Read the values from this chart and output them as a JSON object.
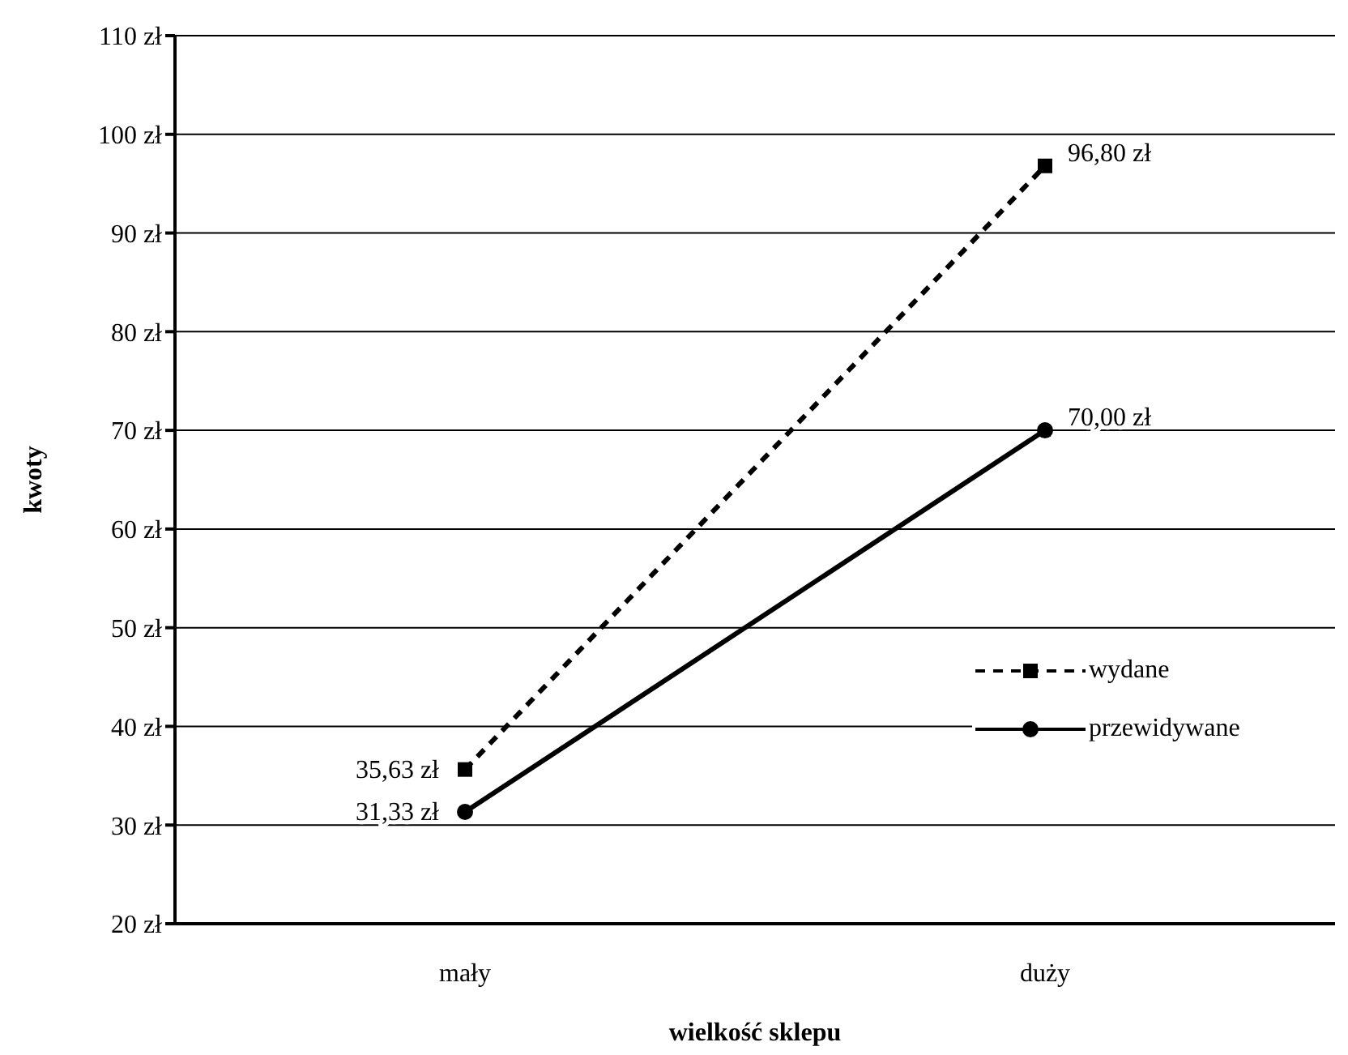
{
  "chart_data": {
    "type": "line",
    "xlabel": "wielkość sklepu",
    "ylabel": "kwoty",
    "categories": [
      "mały",
      "duży"
    ],
    "series": [
      {
        "name": "wydane",
        "color": "#000000",
        "values": [
          35.63,
          96.8
        ],
        "value_labels": [
          "35,63 zł",
          "96,80 zł"
        ],
        "marker": "square",
        "line_style": "dashed"
      },
      {
        "name": "przewidywane",
        "color": "#000000",
        "values": [
          31.33,
          70.0
        ],
        "value_labels": [
          "31,33 zł",
          "70,00 zł"
        ],
        "marker": "circle",
        "line_style": "solid"
      }
    ],
    "ylim": [
      20,
      110
    ],
    "yticks": [
      {
        "value": 20,
        "label": "20 zł"
      },
      {
        "value": 30,
        "label": "30 zł"
      },
      {
        "value": 40,
        "label": "40 zł"
      },
      {
        "value": 50,
        "label": "50 zł"
      },
      {
        "value": 60,
        "label": "60 zł"
      },
      {
        "value": 70,
        "label": "70 zł"
      },
      {
        "value": 80,
        "label": "80 zł"
      },
      {
        "value": 90,
        "label": "90 zł"
      },
      {
        "value": 100,
        "label": "100 zł"
      },
      {
        "value": 110,
        "label": "110 zł"
      }
    ],
    "grid": "y",
    "legend": "right"
  }
}
